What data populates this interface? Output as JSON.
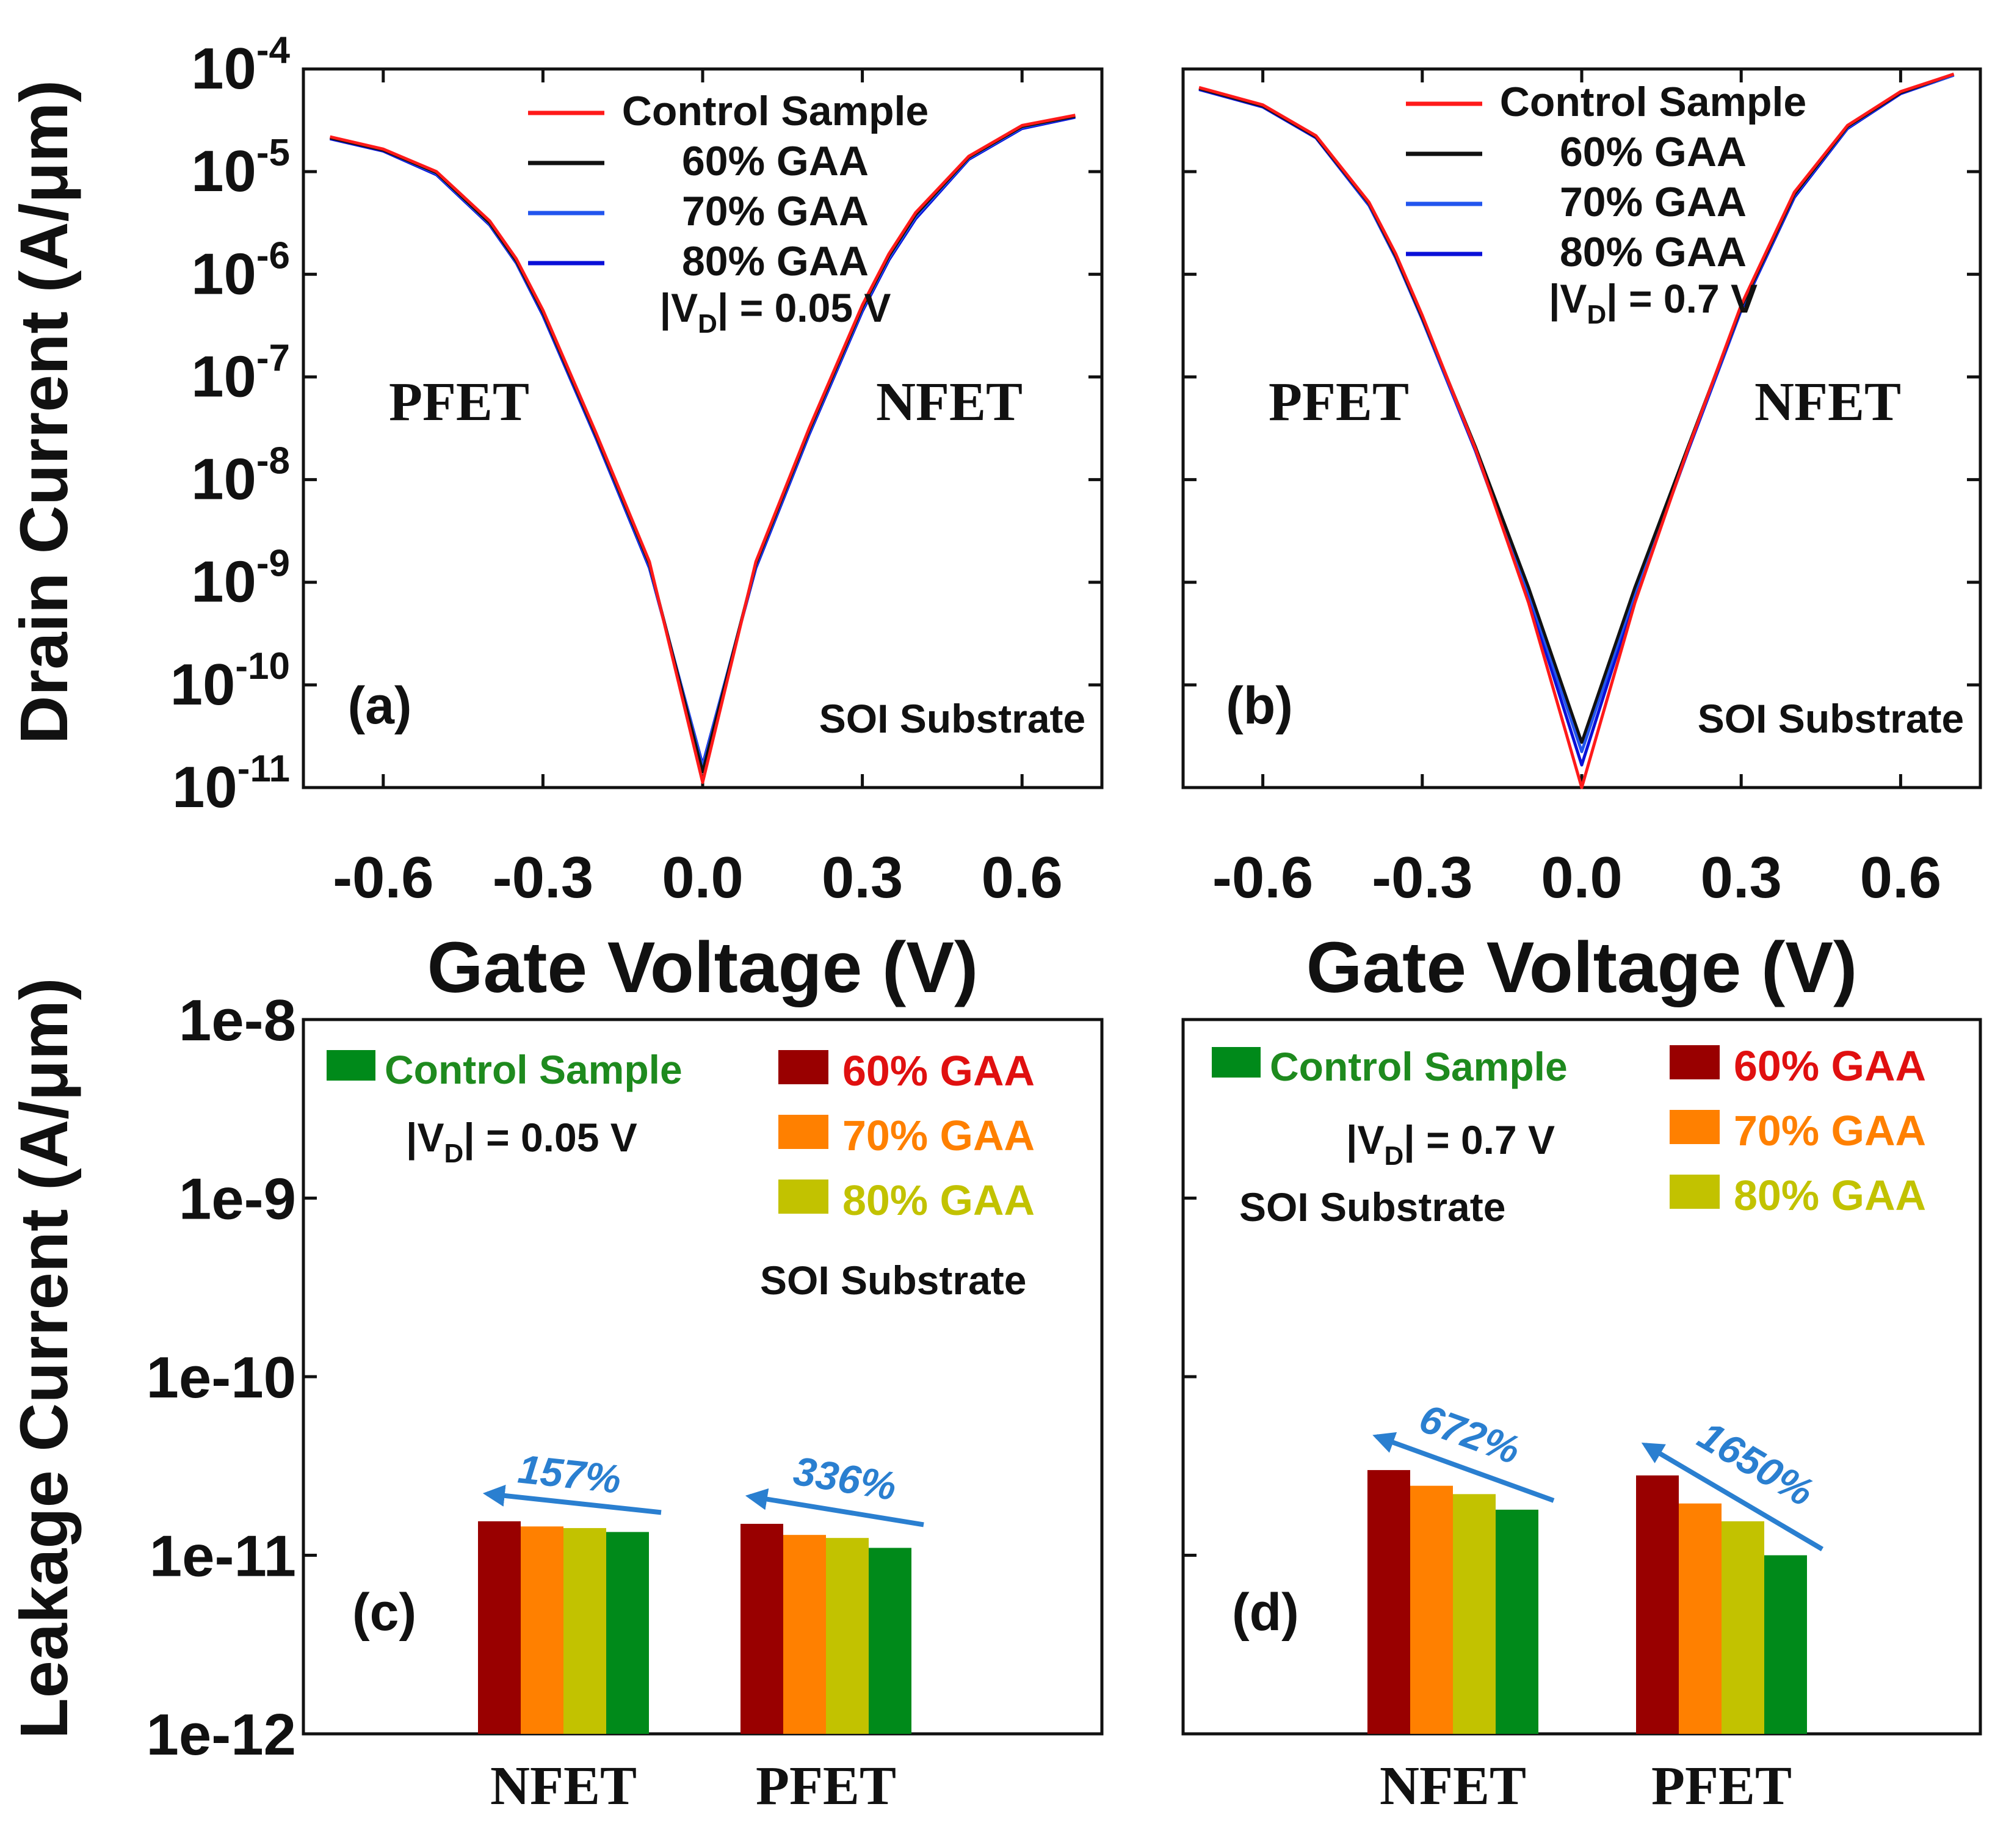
{
  "figure": {
    "y_label_top": "Drain Current (A/μm)",
    "y_label_bottom": "Leakage Current (A/μm)",
    "x_label_top": "Gate Voltage (V)"
  },
  "chart_data": [
    {
      "id": "a",
      "type": "line",
      "panel_label": "(a)",
      "xlabel": "Gate Voltage (V)",
      "ylabel": "Drain Current (A/μm)",
      "xlim": [
        -0.75,
        0.75
      ],
      "ylim_log10": [
        -11,
        -4
      ],
      "yscale": "log",
      "x_ticks": [
        -0.6,
        -0.3,
        0.0,
        0.3,
        0.6
      ],
      "x_tick_labels": [
        "-0.6",
        "-0.3",
        "0.0",
        "0.3",
        "0.6"
      ],
      "y_tick_exponents": [
        -4,
        -5,
        -6,
        -7,
        -8,
        -9,
        -10,
        -11
      ],
      "y_tick_base": "10",
      "annotations": {
        "left": "PFET",
        "right": "NFET",
        "substrate": "SOI Substrate"
      },
      "vd_label": {
        "pre": "|V",
        "sub": "D",
        "post": "| = 0.05 V"
      },
      "legend": [
        "Control Sample",
        "60% GAA",
        "70% GAA",
        "80% GAA"
      ],
      "series": [
        {
          "name": "Control Sample",
          "color": "#ff1a1a",
          "x": [
            -0.7,
            -0.6,
            -0.5,
            -0.4,
            -0.35,
            -0.3,
            -0.2,
            -0.1,
            0.0,
            0.1,
            0.2,
            0.3,
            0.35,
            0.4,
            0.5,
            0.6,
            0.7
          ],
          "y_log10": [
            -4.66,
            -4.78,
            -5.0,
            -5.48,
            -5.85,
            -6.35,
            -7.55,
            -8.8,
            -10.95,
            -8.8,
            -7.5,
            -6.3,
            -5.8,
            -5.4,
            -4.85,
            -4.55,
            -4.45
          ]
        },
        {
          "name": "60% GAA",
          "color": "#111111",
          "x": [
            -0.7,
            -0.6,
            -0.5,
            -0.4,
            -0.35,
            -0.3,
            -0.2,
            -0.1,
            0.0,
            0.1,
            0.2,
            0.3,
            0.35,
            0.4,
            0.5,
            0.6,
            0.7
          ],
          "y_log10": [
            -4.67,
            -4.79,
            -5.01,
            -5.5,
            -5.87,
            -6.37,
            -7.57,
            -8.82,
            -10.85,
            -8.82,
            -7.52,
            -6.32,
            -5.82,
            -5.42,
            -4.86,
            -4.56,
            -4.46
          ]
        },
        {
          "name": "70% GAA",
          "color": "#2255ee",
          "x": [
            -0.7,
            -0.6,
            -0.5,
            -0.4,
            -0.35,
            -0.3,
            -0.2,
            -0.1,
            0.0,
            0.1,
            0.2,
            0.3,
            0.35,
            0.4,
            0.5,
            0.6,
            0.7
          ],
          "y_log10": [
            -4.67,
            -4.79,
            -5.02,
            -5.51,
            -5.88,
            -6.38,
            -7.58,
            -8.84,
            -10.8,
            -8.84,
            -7.54,
            -6.34,
            -5.84,
            -5.44,
            -4.87,
            -4.57,
            -4.46
          ]
        },
        {
          "name": "80% GAA",
          "color": "#0a10d8",
          "x": [
            -0.7,
            -0.6,
            -0.5,
            -0.4,
            -0.35,
            -0.3,
            -0.2,
            -0.1,
            0.0,
            0.1,
            0.2,
            0.3,
            0.35,
            0.4,
            0.5,
            0.6,
            0.7
          ],
          "y_log10": [
            -4.68,
            -4.8,
            -5.03,
            -5.52,
            -5.89,
            -6.4,
            -7.6,
            -8.86,
            -10.78,
            -8.86,
            -7.56,
            -6.36,
            -5.86,
            -5.46,
            -4.88,
            -4.58,
            -4.47
          ]
        }
      ]
    },
    {
      "id": "b",
      "type": "line",
      "panel_label": "(b)",
      "xlabel": "Gate Voltage (V)",
      "ylabel": "Drain Current (A/μm)",
      "xlim": [
        -0.75,
        0.75
      ],
      "ylim_log10": [
        -11,
        -4
      ],
      "yscale": "log",
      "x_ticks": [
        -0.6,
        -0.3,
        0.0,
        0.3,
        0.6
      ],
      "x_tick_labels": [
        "-0.6",
        "-0.3",
        "0.0",
        "0.3",
        "0.6"
      ],
      "y_tick_exponents": [
        -4,
        -5,
        -6,
        -7,
        -8,
        -9,
        -10,
        -11
      ],
      "annotations": {
        "left": "PFET",
        "right": "NFET",
        "substrate": "SOI Substrate"
      },
      "vd_label": {
        "pre": "|V",
        "sub": "D",
        "post": "| = 0.7 V"
      },
      "legend": [
        "Control Sample",
        "60% GAA",
        "70% GAA",
        "80% GAA"
      ],
      "series": [
        {
          "name": "Control Sample",
          "color": "#ff1a1a",
          "x": [
            -0.72,
            -0.6,
            -0.5,
            -0.4,
            -0.35,
            -0.3,
            -0.2,
            -0.1,
            0.0,
            0.1,
            0.2,
            0.3,
            0.35,
            0.4,
            0.5,
            0.6,
            0.7
          ],
          "y_log10": [
            -4.18,
            -4.35,
            -4.65,
            -5.3,
            -5.8,
            -6.4,
            -7.7,
            -9.2,
            -11.0,
            -9.2,
            -7.7,
            -6.3,
            -5.75,
            -5.2,
            -4.55,
            -4.22,
            -4.05
          ]
        },
        {
          "name": "60% GAA",
          "color": "#111111",
          "x": [
            -0.72,
            -0.6,
            -0.5,
            -0.4,
            -0.35,
            -0.3,
            -0.2,
            -0.1,
            0.0,
            0.1,
            0.2,
            0.3,
            0.35,
            0.4,
            0.5,
            0.6,
            0.7
          ],
          "y_log10": [
            -4.19,
            -4.36,
            -4.66,
            -5.31,
            -5.82,
            -6.42,
            -7.68,
            -9.05,
            -10.56,
            -9.05,
            -7.68,
            -6.32,
            -5.77,
            -5.22,
            -4.56,
            -4.23,
            -4.05
          ]
        },
        {
          "name": "70% GAA",
          "color": "#2255ee",
          "x": [
            -0.72,
            -0.6,
            -0.5,
            -0.4,
            -0.35,
            -0.3,
            -0.2,
            -0.1,
            0.0,
            0.1,
            0.2,
            0.3,
            0.35,
            0.4,
            0.5,
            0.6,
            0.7
          ],
          "y_log10": [
            -4.19,
            -4.36,
            -4.66,
            -5.32,
            -5.83,
            -6.43,
            -7.7,
            -9.1,
            -10.65,
            -9.1,
            -7.7,
            -6.33,
            -5.78,
            -5.23,
            -4.57,
            -4.23,
            -4.06
          ]
        },
        {
          "name": "80% GAA",
          "color": "#0a10d8",
          "x": [
            -0.72,
            -0.6,
            -0.5,
            -0.4,
            -0.35,
            -0.3,
            -0.2,
            -0.1,
            0.0,
            0.1,
            0.2,
            0.3,
            0.35,
            0.4,
            0.5,
            0.6,
            0.7
          ],
          "y_log10": [
            -4.2,
            -4.37,
            -4.67,
            -5.33,
            -5.84,
            -6.44,
            -7.72,
            -9.15,
            -10.78,
            -9.15,
            -7.72,
            -6.35,
            -5.8,
            -5.25,
            -4.58,
            -4.24,
            -4.06
          ]
        }
      ]
    },
    {
      "id": "c",
      "type": "bar",
      "panel_label": "(c)",
      "ylabel": "Leakage Current (A/μm)",
      "yscale": "log",
      "ylim_log10": [
        -12,
        -8
      ],
      "y_tick_labels": [
        "1e-8",
        "1e-9",
        "1e-10",
        "1e-11",
        "1e-12"
      ],
      "categories": [
        "NFET",
        "PFET"
      ],
      "substrate": "SOI Substrate",
      "vd_label": {
        "pre": "|V",
        "sub": "D",
        "post": "| = 0.05 V"
      },
      "series": [
        {
          "name": "60% GAA",
          "color": "#990000",
          "legend_color": "#e01010",
          "values": [
            1.55e-11,
            1.5e-11
          ]
        },
        {
          "name": "70% GAA",
          "color": "#ff8000",
          "legend_color": "#ff8000",
          "values": [
            1.45e-11,
            1.3e-11
          ]
        },
        {
          "name": "80% GAA",
          "color": "#c2c200",
          "legend_color": "#c2c200",
          "values": [
            1.42e-11,
            1.25e-11
          ]
        },
        {
          "name": "Control Sample",
          "color": "#008a1a",
          "legend_color": "#1e8a1e",
          "values": [
            1.35e-11,
            1.1e-11
          ]
        }
      ],
      "arrows": [
        {
          "category": "NFET",
          "label": "157%"
        },
        {
          "category": "PFET",
          "label": "336%"
        }
      ]
    },
    {
      "id": "d",
      "type": "bar",
      "panel_label": "(d)",
      "ylabel": "Leakage Current (A/μm)",
      "yscale": "log",
      "ylim_log10": [
        -12,
        -8
      ],
      "categories": [
        "NFET",
        "PFET"
      ],
      "substrate": "SOI Substrate",
      "vd_label": {
        "pre": "|V",
        "sub": "D",
        "post": "| = 0.7 V"
      },
      "series": [
        {
          "name": "60% GAA",
          "color": "#990000",
          "legend_color": "#e01010",
          "values": [
            3e-11,
            2.8e-11
          ]
        },
        {
          "name": "70% GAA",
          "color": "#ff8000",
          "legend_color": "#ff8000",
          "values": [
            2.45e-11,
            1.95e-11
          ]
        },
        {
          "name": "80% GAA",
          "color": "#c2c200",
          "legend_color": "#c2c200",
          "values": [
            2.2e-11,
            1.55e-11
          ]
        },
        {
          "name": "Control Sample",
          "color": "#008a1a",
          "legend_color": "#1e8a1e",
          "values": [
            1.8e-11,
            1e-11
          ]
        }
      ],
      "arrows": [
        {
          "category": "NFET",
          "label": "672%"
        },
        {
          "category": "PFET",
          "label": "1650%"
        }
      ]
    }
  ]
}
